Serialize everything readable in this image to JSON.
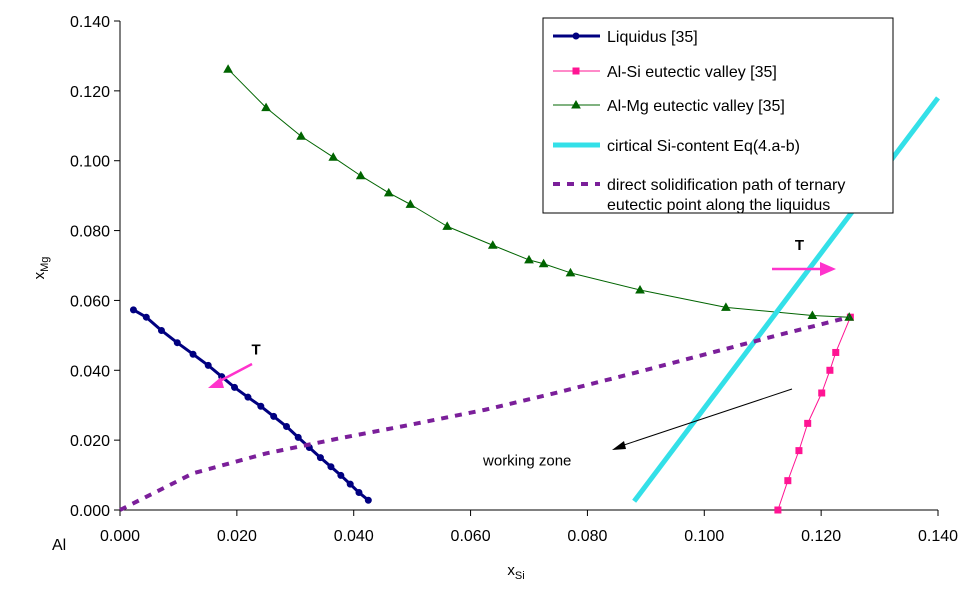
{
  "chart_data": {
    "type": "line",
    "xlabel": "x",
    "xlabel_sub": "Si",
    "ylabel": "x",
    "ylabel_sub": "Mg",
    "origin_label": "Al",
    "xlim": [
      0.0,
      0.14
    ],
    "ylim": [
      0.0,
      0.14
    ],
    "x_ticks": [
      0.0,
      0.02,
      0.04,
      0.06,
      0.08,
      0.1,
      0.12,
      0.14
    ],
    "x_tick_labels": [
      "0.000",
      "0.020",
      "0.040",
      "0.060",
      "0.080",
      "0.100",
      "0.120",
      "0.140"
    ],
    "y_ticks": [
      0.0,
      0.02,
      0.04,
      0.06,
      0.08,
      0.1,
      0.12,
      0.14
    ],
    "y_tick_labels": [
      "0.000",
      "0.020",
      "0.040",
      "0.060",
      "0.080",
      "0.100",
      "0.120",
      "0.140"
    ],
    "grid": false,
    "legend_position": "top-right",
    "series": [
      {
        "name": "Liquidus [35]",
        "color": "#000080",
        "marker": "circle",
        "style": "solid-thick",
        "x": [
          0.0023,
          0.0045,
          0.0071,
          0.0098,
          0.0125,
          0.0151,
          0.0174,
          0.0196,
          0.0219,
          0.0241,
          0.0263,
          0.0285,
          0.0305,
          0.0324,
          0.0343,
          0.0361,
          0.0378,
          0.0394,
          0.0409,
          0.0425
        ],
        "y": [
          0.0573,
          0.0552,
          0.0514,
          0.0479,
          0.0446,
          0.0414,
          0.0382,
          0.0351,
          0.0323,
          0.0297,
          0.0268,
          0.0239,
          0.0208,
          0.0179,
          0.015,
          0.0124,
          0.0099,
          0.0074,
          0.005,
          0.0028
        ]
      },
      {
        "name": "Al-Si eutectic valley [35]",
        "color": "#ff1493",
        "marker": "square",
        "style": "solid-thin",
        "x": [
          0.1126,
          0.1143,
          0.1162,
          0.1177,
          0.1201,
          0.1215,
          0.1225,
          0.125
        ],
        "y": [
          0.0,
          0.0084,
          0.017,
          0.0248,
          0.0335,
          0.04,
          0.0451,
          0.0552
        ]
      },
      {
        "name": "Al-Mg eutectic valley [35]",
        "color": "#006400",
        "marker": "triangle",
        "style": "solid-thin",
        "x": [
          0.0185,
          0.025,
          0.031,
          0.0365,
          0.0412,
          0.046,
          0.0497,
          0.056,
          0.0638,
          0.07,
          0.0725,
          0.0771,
          0.089,
          0.1037,
          0.1185,
          0.1248
        ],
        "y": [
          0.1262,
          0.1152,
          0.107,
          0.101,
          0.0957,
          0.0908,
          0.0875,
          0.0812,
          0.0758,
          0.0716,
          0.0705,
          0.0679,
          0.063,
          0.058,
          0.0557,
          0.0552
        ]
      },
      {
        "name": "cirtical Si-content Eq(4.a-b)",
        "color": "#33e0e8",
        "marker": "none",
        "style": "solid-heavy",
        "x": [
          0.088,
          0.14
        ],
        "y": [
          0.0025,
          0.118
        ]
      },
      {
        "name": "direct solidification path of ternary eutectic point along the liquidus",
        "legend_lines": [
          "direct solidification path of ternary",
          "eutectic point along the liquidus"
        ],
        "color": "#7b1f9a",
        "marker": "none",
        "style": "dashed",
        "x": [
          0.0,
          0.0125,
          0.025,
          0.0375,
          0.05,
          0.0625,
          0.075,
          0.0875,
          0.1,
          0.1125,
          0.1248
        ],
        "y": [
          0.0,
          0.0105,
          0.0162,
          0.0205,
          0.0245,
          0.0287,
          0.0337,
          0.039,
          0.0445,
          0.05,
          0.0552
        ]
      }
    ],
    "annotations": [
      {
        "text": "T",
        "color": "#ff33cc",
        "anchor_x": 0.0225,
        "anchor_y": 0.0445
      },
      {
        "text": "T",
        "color": "#ff33cc",
        "anchor_x": 0.1155,
        "anchor_y": 0.0722
      },
      {
        "text": "working zone",
        "color": "#000000",
        "anchor_x": 0.0635,
        "anchor_y": 0.0145
      }
    ]
  }
}
